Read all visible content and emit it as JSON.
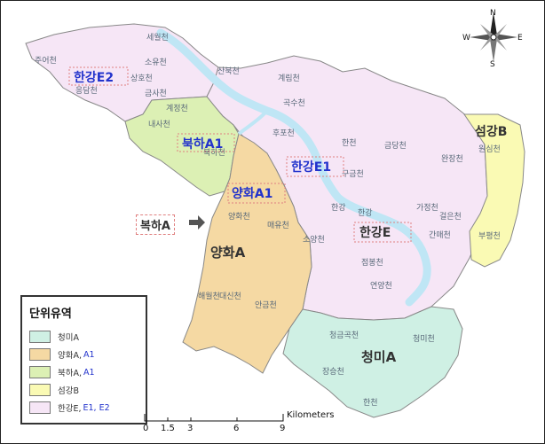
{
  "units": {
    "hangang_e2": "한강E2",
    "bukha_a1": "북하A1",
    "yanghwa_a1": "양화A1",
    "hangang_e1": "한강E1",
    "seomgang_b": "섬강B",
    "hangang_e": "한강E",
    "yanghwa_a": "양화A",
    "cheongmi_a": "청미A",
    "bukha_a_callout": "복하A"
  },
  "streams": {
    "s1": "세월천",
    "s2": "주어천",
    "s3": "소유천",
    "s4": "상호천",
    "s5": "응담천",
    "s6": "산북천",
    "s7": "금사천",
    "s8": "계정천",
    "s9": "계림천",
    "s10": "곡수천",
    "s11": "후포천",
    "s12": "내사천",
    "s13": "북하천",
    "s14": "한천",
    "s15": "금당천",
    "s16": "완장천",
    "s17": "원심천",
    "s18": "구금천",
    "s19": "가정천",
    "s20": "걸은천",
    "s21": "한강",
    "s22": "간매천",
    "s23": "부평천",
    "s24": "양화천",
    "s25": "매유천",
    "s26": "소양천",
    "s27": "점봉천",
    "s28": "연양천",
    "s29": "해월천",
    "s30": "대신천",
    "s31": "안금천",
    "s32": "청금곡천",
    "s33": "청미천",
    "s34": "장승천",
    "s35": "한천",
    "s36": "한강"
  },
  "legend": {
    "title": "단위유역",
    "items": [
      {
        "label": "청미A",
        "extra": "",
        "color": "#cff0e4"
      },
      {
        "label": "양화A,",
        "extra": "A1",
        "color": "#f5d9a3"
      },
      {
        "label": "북하A,",
        "extra": "A1",
        "color": "#dcf0b4"
      },
      {
        "label": "섬강B",
        "extra": "",
        "color": "#fafab4"
      },
      {
        "label": "한강E,",
        "extra": "E1, E2",
        "color": "#f6e6f6"
      }
    ]
  },
  "scale": {
    "unit": "Kilometers",
    "ticks": [
      "0",
      "1.5",
      "3",
      "6",
      "9"
    ]
  },
  "compass": {
    "n": "N",
    "s": "S",
    "e": "E",
    "w": "W"
  },
  "colors": {
    "hangang": "#f6e6f6",
    "yanghwa": "#f5d9a3",
    "bukha": "#dcf0b4",
    "seomgang": "#fafab4",
    "cheongmi": "#cff0e4",
    "river": "#bfe6f5"
  }
}
